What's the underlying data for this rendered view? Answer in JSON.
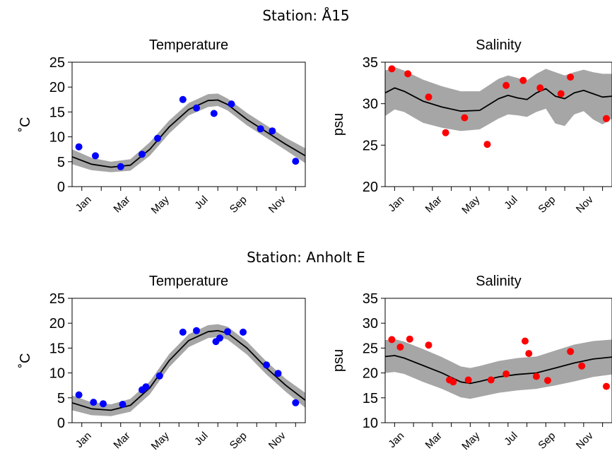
{
  "figure": {
    "stations": [
      {
        "title": "Station: Å15"
      },
      {
        "title": "Station: Anholt E"
      }
    ]
  },
  "chart_data": [
    {
      "type": "scatter",
      "station": "Station: Å15",
      "title": "Temperature",
      "ylabel": "˚C",
      "xlabel": "",
      "xticks": [
        "Jan",
        "Mar",
        "May",
        "Jul",
        "Sep",
        "Nov"
      ],
      "xlim": [
        0,
        12
      ],
      "ylim": [
        0,
        25
      ],
      "yticks": [
        "0",
        "5",
        "10",
        "15",
        "20",
        "25"
      ],
      "point_color": "#0000ff",
      "points": {
        "x": [
          0.35,
          1.2,
          2.5,
          3.6,
          4.4,
          5.7,
          6.4,
          7.3,
          8.2,
          9.7,
          10.3,
          11.5
        ],
        "y": [
          8.0,
          6.2,
          4.0,
          6.5,
          9.7,
          17.5,
          15.8,
          14.7,
          16.6,
          11.6,
          11.2,
          5.1
        ]
      },
      "fit": {
        "x": [
          0,
          1,
          2,
          3,
          4,
          5,
          6,
          7,
          7.5,
          8,
          9,
          10,
          11,
          12
        ],
        "y": [
          6.0,
          4.5,
          3.9,
          4.3,
          7.5,
          12.0,
          15.5,
          17.3,
          17.4,
          16.5,
          13.5,
          11.0,
          8.5,
          6.2
        ]
      },
      "band": {
        "x": [
          0,
          1,
          2,
          3,
          4,
          5,
          6,
          7,
          7.5,
          8,
          9,
          10,
          11,
          12
        ],
        "lower": [
          4.5,
          3.3,
          2.9,
          3.2,
          6.2,
          10.7,
          14.3,
          16.0,
          16.2,
          15.3,
          12.3,
          9.8,
          7.3,
          4.7
        ],
        "upper": [
          7.5,
          5.8,
          5.0,
          5.5,
          8.9,
          13.3,
          16.8,
          18.6,
          18.7,
          17.7,
          14.8,
          12.3,
          9.8,
          7.7
        ]
      },
      "band_color": "#a6a6a6",
      "grid": false
    },
    {
      "type": "scatter",
      "station": "Station: Å15",
      "title": "Salinity",
      "ylabel": "psu",
      "xlabel": "",
      "xticks": [
        "Jan",
        "Mar",
        "May",
        "Jul",
        "Sep",
        "Nov"
      ],
      "xlim": [
        0,
        12
      ],
      "ylim": [
        20,
        35
      ],
      "yticks": [
        "20",
        "25",
        "30",
        "35"
      ],
      "point_color": "#ff0000",
      "points": {
        "x": [
          0.35,
          1.2,
          2.3,
          3.2,
          4.2,
          5.4,
          6.4,
          7.3,
          8.2,
          9.3,
          9.8,
          11.7
        ],
        "y": [
          34.2,
          33.6,
          30.8,
          26.5,
          28.3,
          25.1,
          32.2,
          32.8,
          31.9,
          31.2,
          33.2,
          28.2
        ]
      },
      "fit": {
        "x": [
          0,
          0.5,
          1,
          2,
          3,
          4,
          5,
          6,
          6.5,
          7,
          7.5,
          8,
          8.5,
          9,
          9.5,
          10,
          10.5,
          11,
          11.5,
          12
        ],
        "y": [
          31.3,
          31.9,
          31.5,
          30.3,
          29.6,
          29.1,
          29.2,
          30.6,
          31.0,
          30.7,
          30.5,
          31.3,
          31.8,
          30.9,
          30.6,
          31.3,
          31.6,
          31.2,
          30.8,
          30.9
        ]
      },
      "band": {
        "x": [
          0,
          0.5,
          1,
          2,
          3,
          4,
          5,
          6,
          6.5,
          7,
          7.5,
          8,
          8.5,
          9,
          9.5,
          10,
          10.5,
          11,
          11.5,
          12
        ],
        "lower": [
          28.5,
          29.3,
          29.0,
          27.7,
          27.1,
          26.7,
          26.9,
          28.2,
          28.7,
          28.6,
          28.4,
          29.0,
          29.4,
          27.6,
          27.3,
          28.7,
          29.1,
          28.1,
          27.5,
          28.2
        ],
        "upper": [
          34.0,
          34.4,
          34.0,
          32.9,
          32.1,
          31.5,
          31.5,
          33.0,
          33.4,
          33.1,
          32.8,
          33.6,
          34.2,
          33.8,
          33.4,
          33.8,
          34.1,
          33.8,
          33.6,
          33.6
        ]
      },
      "band_color": "#a6a6a6",
      "grid": false
    },
    {
      "type": "scatter",
      "station": "Station: Anholt E",
      "title": "Temperature",
      "ylabel": "˚C",
      "xlabel": "",
      "xticks": [
        "Jan",
        "Mar",
        "May",
        "Jul",
        "Sep",
        "Nov"
      ],
      "xlim": [
        0,
        12
      ],
      "ylim": [
        0,
        25
      ],
      "yticks": [
        "0",
        "5",
        "10",
        "15",
        "20",
        "25"
      ],
      "point_color": "#0000ff",
      "points": {
        "x": [
          0.35,
          1.1,
          1.6,
          2.6,
          3.6,
          3.8,
          4.5,
          5.7,
          6.4,
          7.4,
          7.6,
          8.0,
          8.8,
          10.0,
          10.6,
          11.5
        ],
        "y": [
          5.6,
          4.1,
          3.8,
          3.7,
          6.6,
          7.2,
          9.4,
          18.2,
          18.5,
          16.3,
          17.0,
          18.3,
          18.2,
          11.6,
          9.9,
          4.0
        ]
      },
      "fit": {
        "x": [
          0,
          1,
          2,
          3,
          4,
          5,
          6,
          7,
          7.5,
          8,
          9,
          10,
          11,
          12
        ],
        "y": [
          4.0,
          2.8,
          2.5,
          3.5,
          7.0,
          12.5,
          16.5,
          18.3,
          18.5,
          18.0,
          15.0,
          11.0,
          7.5,
          4.5
        ]
      },
      "band": {
        "x": [
          0,
          1,
          2,
          3,
          4,
          5,
          6,
          7,
          7.5,
          8,
          9,
          10,
          11,
          12
        ],
        "lower": [
          2.5,
          1.5,
          1.3,
          2.2,
          5.7,
          11.2,
          15.2,
          17.0,
          17.2,
          16.7,
          13.7,
          9.7,
          6.2,
          3.0
        ],
        "upper": [
          5.5,
          4.1,
          3.7,
          4.8,
          8.3,
          13.8,
          17.8,
          19.6,
          19.8,
          19.3,
          16.3,
          12.3,
          8.8,
          6.0
        ]
      },
      "band_color": "#a6a6a6",
      "grid": false
    },
    {
      "type": "scatter",
      "station": "Station: Anholt E",
      "title": "Salinity",
      "ylabel": "psu",
      "xlabel": "",
      "xticks": [
        "Jan",
        "Mar",
        "May",
        "Jul",
        "Sep",
        "Nov"
      ],
      "xlim": [
        0,
        12
      ],
      "ylim": [
        10,
        35
      ],
      "yticks": [
        "10",
        "15",
        "20",
        "25",
        "30",
        "35"
      ],
      "point_color": "#ff0000",
      "points": {
        "x": [
          0.35,
          0.8,
          1.3,
          2.3,
          3.4,
          3.6,
          4.4,
          5.6,
          6.4,
          7.4,
          7.6,
          8.0,
          8.6,
          9.8,
          10.4,
          11.7
        ],
        "y": [
          26.7,
          25.2,
          26.8,
          25.6,
          18.6,
          18.2,
          18.6,
          18.6,
          19.8,
          26.4,
          23.9,
          19.3,
          18.5,
          24.3,
          21.4,
          17.3
        ]
      },
      "fit": {
        "x": [
          0,
          0.5,
          1,
          2,
          3,
          4,
          4.5,
          5,
          6,
          7,
          8,
          9,
          10,
          11,
          12
        ],
        "y": [
          23.3,
          23.5,
          23.0,
          21.5,
          20.0,
          18.2,
          17.9,
          18.3,
          19.2,
          19.7,
          20.0,
          21.0,
          22.0,
          22.8,
          23.2
        ]
      },
      "band": {
        "x": [
          0,
          0.5,
          1,
          2,
          3,
          4,
          4.5,
          5,
          6,
          7,
          8,
          9,
          10,
          11,
          12
        ],
        "lower": [
          20.0,
          20.2,
          19.8,
          18.2,
          16.8,
          15.1,
          14.8,
          15.2,
          16.0,
          16.5,
          16.8,
          17.5,
          18.3,
          19.2,
          19.7
        ],
        "upper": [
          26.6,
          26.8,
          26.3,
          24.8,
          23.2,
          21.3,
          21.0,
          21.4,
          22.4,
          23.0,
          23.3,
          24.5,
          25.7,
          26.4,
          26.7
        ]
      },
      "band_color": "#a6a6a6",
      "grid": false
    }
  ]
}
